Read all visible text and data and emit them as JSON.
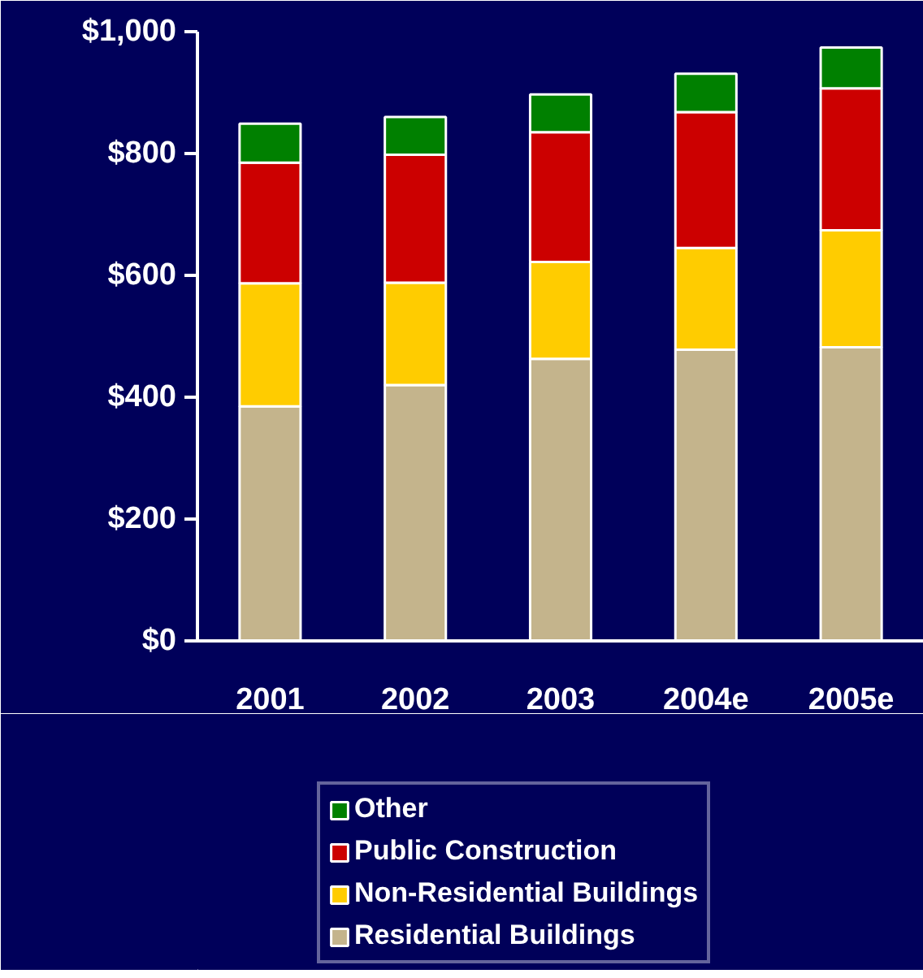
{
  "chart_data": {
    "type": "bar",
    "stacked": true,
    "categories": [
      "2001",
      "2002",
      "2003",
      "2004e",
      "2005e"
    ],
    "series": [
      {
        "name": "Residential Buildings",
        "color": "#c4b48c",
        "values": [
          385,
          420,
          463,
          478,
          482
        ]
      },
      {
        "name": "Non-Residential Buildings",
        "color": "#ffcc00",
        "values": [
          202,
          168,
          159,
          167,
          192
        ]
      },
      {
        "name": "Public Construction",
        "color": "#cc0000",
        "values": [
          198,
          210,
          213,
          223,
          233
        ]
      },
      {
        "name": "Other",
        "color": "#008000",
        "values": [
          64,
          62,
          62,
          63,
          67
        ]
      }
    ],
    "ylim": [
      0,
      1000
    ],
    "yticks": [
      {
        "value": 0,
        "label": "$0"
      },
      {
        "value": 200,
        "label": "$200"
      },
      {
        "value": 400,
        "label": "$400"
      },
      {
        "value": 600,
        "label": "$600"
      },
      {
        "value": 800,
        "label": "$800"
      },
      {
        "value": 1000,
        "label": "$1,000"
      }
    ],
    "grid": false,
    "legend": "bottom"
  }
}
